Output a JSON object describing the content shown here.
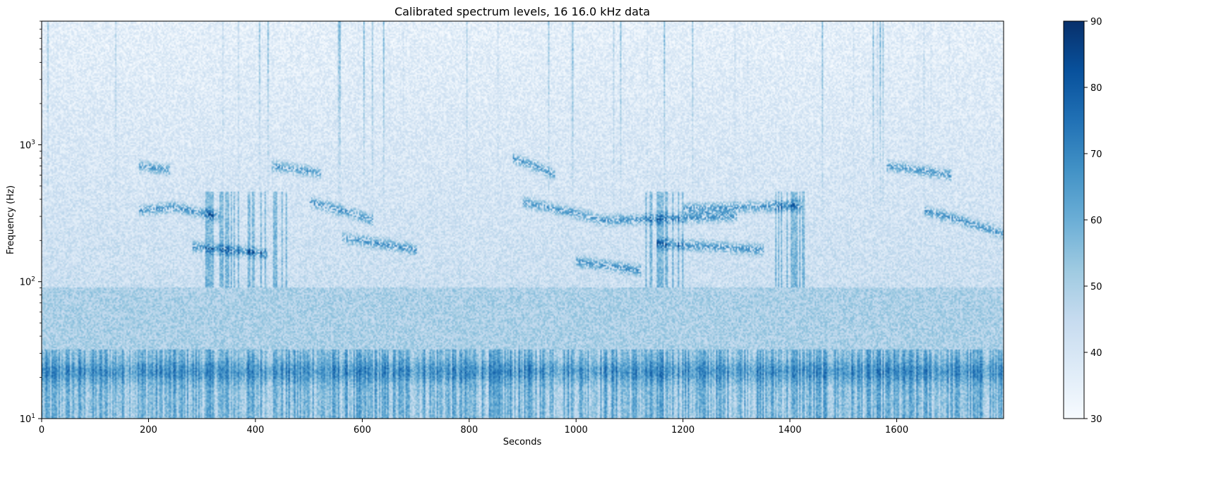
{
  "chart_data": {
    "type": "heatmap",
    "title": "Calibrated spectrum levels, 16 16.0 kHz data",
    "xlabel": "Seconds",
    "ylabel": "Frequency (Hz)",
    "x_scale": "linear",
    "y_scale": "log",
    "xlim": [
      0,
      1800
    ],
    "ylim": [
      10,
      8000
    ],
    "x_ticks": [
      0,
      200,
      400,
      600,
      800,
      1000,
      1200,
      1400,
      1600
    ],
    "x_tick_labels": [
      "0",
      "200",
      "400",
      "600",
      "800",
      "1000",
      "1200",
      "1400",
      "1600"
    ],
    "y_ticks": [
      10,
      100,
      1000
    ],
    "y_tick_labels": [
      {
        "base": "10",
        "exp": "1"
      },
      {
        "base": "10",
        "exp": "2"
      },
      {
        "base": "10",
        "exp": "3"
      }
    ],
    "colormap": "Blues",
    "colorbar": {
      "vmin": 30,
      "vmax": 90,
      "ticks": [
        30,
        40,
        50,
        60,
        70,
        80,
        90
      ],
      "tick_labels": [
        "30",
        "40",
        "50",
        "60",
        "70",
        "80",
        "90"
      ]
    },
    "grid": false
  }
}
